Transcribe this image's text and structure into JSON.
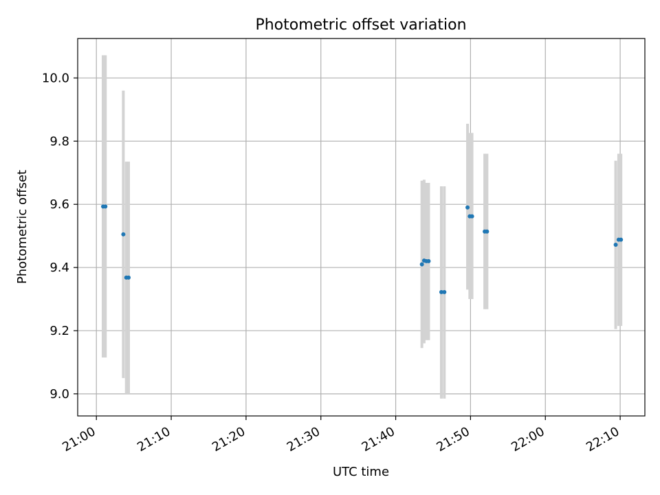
{
  "chart_data": {
    "type": "scatter",
    "title": "Photometric offset variation",
    "xlabel": "UTC time",
    "ylabel": "Photometric offset",
    "x_ticks": [
      "21:00",
      "21:10",
      "21:20",
      "21:30",
      "21:40",
      "21:50",
      "22:00",
      "22:10"
    ],
    "x_tick_minutes": [
      0,
      10,
      20,
      30,
      40,
      50,
      60,
      70
    ],
    "xlim_minutes": [
      -2.5,
      73.3
    ],
    "y_ticks": [
      "9.0",
      "9.2",
      "9.4",
      "9.6",
      "9.8",
      "10.0"
    ],
    "ylim": [
      8.93,
      10.125
    ],
    "grid": true,
    "colors": {
      "point": "#1f77b4",
      "errorbar": "#d3d3d3",
      "grid": "#b0b0b0"
    },
    "series": [
      {
        "points": [
          {
            "t": 0.9,
            "y": 9.593,
            "ylow": 9.115,
            "yhigh": 10.072
          },
          {
            "t": 1.2,
            "y": 9.593,
            "ylow": 9.115,
            "yhigh": 10.072
          },
          {
            "t": 3.6,
            "y": 9.505,
            "ylow": 9.05,
            "yhigh": 9.96
          },
          {
            "t": 4.0,
            "y": 9.368,
            "ylow": 9.0,
            "yhigh": 9.735
          },
          {
            "t": 4.3,
            "y": 9.368,
            "ylow": 9.0,
            "yhigh": 9.735
          },
          {
            "t": 43.5,
            "y": 9.41,
            "ylow": 9.145,
            "yhigh": 9.675
          },
          {
            "t": 43.8,
            "y": 9.422,
            "ylow": 9.16,
            "yhigh": 9.678
          },
          {
            "t": 44.1,
            "y": 9.42,
            "ylow": 9.17,
            "yhigh": 9.668
          },
          {
            "t": 44.4,
            "y": 9.42,
            "ylow": 9.17,
            "yhigh": 9.668
          },
          {
            "t": 46.1,
            "y": 9.322,
            "ylow": 8.985,
            "yhigh": 9.657
          },
          {
            "t": 46.5,
            "y": 9.322,
            "ylow": 8.985,
            "yhigh": 9.657
          },
          {
            "t": 49.6,
            "y": 9.59,
            "ylow": 9.33,
            "yhigh": 9.855
          },
          {
            "t": 49.9,
            "y": 9.562,
            "ylow": 9.3,
            "yhigh": 9.826
          },
          {
            "t": 50.2,
            "y": 9.562,
            "ylow": 9.3,
            "yhigh": 9.826
          },
          {
            "t": 51.9,
            "y": 9.514,
            "ylow": 9.268,
            "yhigh": 9.76
          },
          {
            "t": 52.2,
            "y": 9.514,
            "ylow": 9.268,
            "yhigh": 9.76
          },
          {
            "t": 69.4,
            "y": 9.472,
            "ylow": 9.205,
            "yhigh": 9.738
          },
          {
            "t": 69.8,
            "y": 9.488,
            "ylow": 9.215,
            "yhigh": 9.76
          },
          {
            "t": 70.1,
            "y": 9.488,
            "ylow": 9.215,
            "yhigh": 9.76
          }
        ]
      }
    ]
  }
}
